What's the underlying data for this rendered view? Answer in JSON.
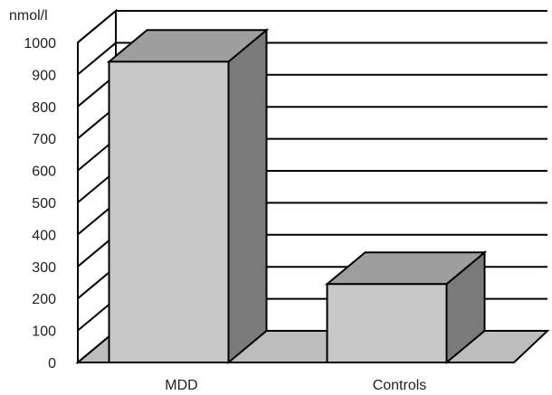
{
  "chart_data": {
    "type": "bar",
    "ylabel": "nmol/l",
    "ylim": [
      0,
      1000
    ],
    "yticks": [
      0,
      100,
      200,
      300,
      400,
      500,
      600,
      700,
      800,
      900,
      1000
    ],
    "categories": [
      "MDD",
      "Controls"
    ],
    "values": [
      940,
      245
    ],
    "grid": true,
    "style": "3d",
    "colors": {
      "bar_front": "#c8c8c8",
      "bar_top": "#9e9e9e",
      "bar_side": "#7a7a7a",
      "floor": "#bdbdbd",
      "walls": "#ffffff",
      "lines": "#000000"
    }
  }
}
